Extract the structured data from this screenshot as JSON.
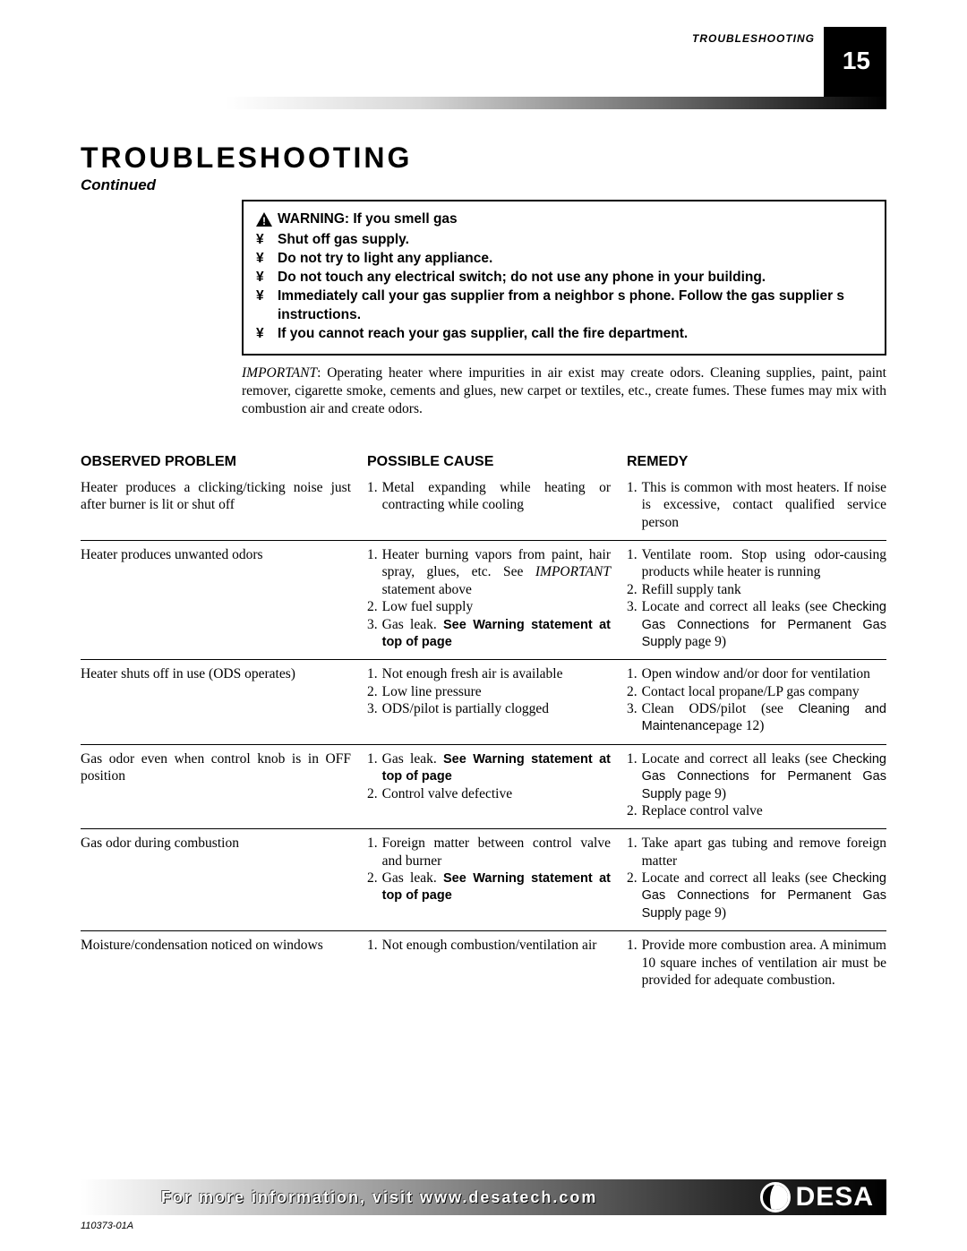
{
  "header": {
    "section_small": "TROUBLESHOOTING",
    "page_number": "15"
  },
  "title": "TROUBLESHOOTING",
  "continued": "Continued",
  "warning": {
    "heading": "WARNING: If you smell gas",
    "bullet_char": "¥",
    "items": [
      "Shut off gas supply.",
      "Do not try to light any appliance.",
      "Do not touch any electrical switch; do not use any phone in your building.",
      "Immediately call your gas supplier from a neighbor s phone. Follow the gas supplier s instructions.",
      "If you cannot reach your gas supplier, call the fire department."
    ]
  },
  "important": {
    "lead": "IMPORTANT",
    "text": ": Operating heater where impurities in air exist may create odors. Cleaning supplies, paint, paint remover, cigarette smoke, cements and glues, new carpet or textiles, etc., create fumes. These fumes may mix with combustion air and create odors."
  },
  "table": {
    "headers": {
      "a": "OBSERVED PROBLEM",
      "b": "POSSIBLE CAUSE",
      "c": "REMEDY"
    },
    "rows": [
      {
        "observed": "Heater produces a clicking/ticking noise just after burner is lit or shut off",
        "cause": [
          {
            "n": "1.",
            "segments": [
              {
                "t": "Metal expanding while heating or contracting while cooling"
              }
            ]
          }
        ],
        "remedy": [
          {
            "n": "1.",
            "segments": [
              {
                "t": "This is common with most heaters. If noise is excessive, contact qualified service person"
              }
            ]
          }
        ]
      },
      {
        "observed": "Heater produces unwanted odors",
        "cause": [
          {
            "n": "1.",
            "segments": [
              {
                "t": "Heater burning vapors from paint, hair spray, glues, etc. See "
              },
              {
                "t": "IMPORTANT",
                "cls": "ital"
              },
              {
                "t": " statement above"
              }
            ]
          },
          {
            "n": "2.",
            "segments": [
              {
                "t": "Low fuel supply"
              }
            ]
          },
          {
            "n": "3.",
            "segments": [
              {
                "t": "Gas leak. "
              },
              {
                "t": "See Warning statement at top of page",
                "cls": "bold-inline"
              }
            ]
          }
        ],
        "remedy": [
          {
            "n": "1.",
            "segments": [
              {
                "t": "Ventilate room. Stop using odor-causing products while heater is running"
              }
            ]
          },
          {
            "n": "2.",
            "segments": [
              {
                "t": "Refill supply tank"
              }
            ]
          },
          {
            "n": "3.",
            "segments": [
              {
                "t": "Locate and correct all leaks (see "
              },
              {
                "t": "Checking Gas Connections for Permanent Gas Supply ",
                "cls": "sans-inline"
              },
              {
                "t": "page 9)"
              }
            ]
          }
        ]
      },
      {
        "observed": "Heater shuts off in use (ODS operates)",
        "cause": [
          {
            "n": "1.",
            "segments": [
              {
                "t": "Not enough fresh air is available"
              }
            ]
          },
          {
            "n": "2.",
            "segments": [
              {
                "t": "Low line pressure"
              }
            ]
          },
          {
            "n": "3.",
            "segments": [
              {
                "t": "ODS/pilot is partially clogged"
              }
            ]
          }
        ],
        "remedy": [
          {
            "n": "1.",
            "segments": [
              {
                "t": "Open window and/or door for ventilation"
              }
            ]
          },
          {
            "n": "2.",
            "segments": [
              {
                "t": "Contact local propane/LP gas company"
              }
            ]
          },
          {
            "n": "3.",
            "segments": [
              {
                "t": "Clean ODS/pilot (see "
              },
              {
                "t": "Cleaning and Maintenance",
                "cls": "sans-inline"
              },
              {
                "t": "page 12)"
              }
            ]
          }
        ]
      },
      {
        "observed": "Gas odor even when control knob is in OFF position",
        "cause": [
          {
            "n": "1.",
            "segments": [
              {
                "t": "Gas leak. "
              },
              {
                "t": "See Warning statement at top of page",
                "cls": "bold-inline"
              }
            ]
          },
          {
            "n": "2.",
            "segments": [
              {
                "t": "Control valve defective"
              }
            ]
          }
        ],
        "remedy": [
          {
            "n": "1.",
            "segments": [
              {
                "t": "Locate and correct all leaks (see "
              },
              {
                "t": "Checking Gas Connections for Permanent Gas Supply ",
                "cls": "sans-inline"
              },
              {
                "t": "page 9)"
              }
            ]
          },
          {
            "n": "2.",
            "segments": [
              {
                "t": "Replace control valve"
              }
            ]
          }
        ]
      },
      {
        "observed": "Gas odor during combustion",
        "cause": [
          {
            "n": "1.",
            "segments": [
              {
                "t": "Foreign matter between control valve and burner"
              }
            ]
          },
          {
            "n": "2.",
            "segments": [
              {
                "t": "Gas leak. "
              },
              {
                "t": "See Warning statement at top of page",
                "cls": "bold-inline"
              }
            ]
          }
        ],
        "remedy": [
          {
            "n": "1.",
            "segments": [
              {
                "t": "Take apart gas tubing and remove foreign matter"
              }
            ]
          },
          {
            "n": "2.",
            "segments": [
              {
                "t": "Locate and correct all leaks (see "
              },
              {
                "t": "Checking Gas Connections for Permanent Gas Supply ",
                "cls": "sans-inline"
              },
              {
                "t": "page 9)"
              }
            ]
          }
        ]
      },
      {
        "observed": "Moisture/condensation noticed on windows",
        "cause": [
          {
            "n": "1.",
            "segments": [
              {
                "t": "Not enough combustion/ventilation air"
              }
            ]
          }
        ],
        "remedy": [
          {
            "n": "1.",
            "segments": [
              {
                "t": "Provide more combustion area. A minimum 10 square inches of ventilation air must be provided for adequate combustion."
              }
            ]
          }
        ]
      }
    ]
  },
  "footer": {
    "text": "For more information, visit www.desatech.com",
    "logo_text": "DESA",
    "docnum": "110373-01A"
  },
  "colors": {
    "black": "#000000",
    "white": "#ffffff"
  }
}
